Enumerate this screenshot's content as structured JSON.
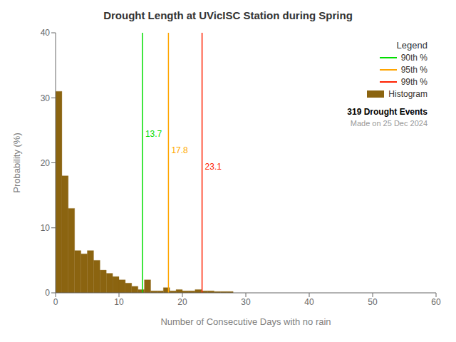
{
  "chart_data": {
    "type": "histogram",
    "title": "Drought Length at UVicISC Station during Spring",
    "xlabel": "Number of Consecutive Days with no rain",
    "ylabel": "Probability (%)",
    "bins": [
      0,
      1,
      2,
      3,
      4,
      5,
      6,
      7,
      8,
      9,
      10,
      11,
      12,
      13,
      14,
      15,
      16,
      17,
      18,
      19,
      20,
      21,
      22,
      23,
      24,
      25,
      26,
      27,
      28,
      29,
      30,
      31,
      32,
      33,
      34,
      35,
      36,
      37,
      38,
      39,
      40,
      41,
      42,
      43,
      44,
      45,
      46,
      47,
      48,
      49,
      50,
      51,
      52,
      53,
      54,
      55,
      56,
      57,
      58,
      59,
      60
    ],
    "series": [
      {
        "name": "Histogram",
        "color": "#8B6410",
        "values": [
          31.0,
          18.0,
          13.0,
          6.5,
          6.0,
          6.5,
          5.0,
          3.5,
          3.0,
          2.5,
          2.0,
          1.5,
          1.0,
          0.5,
          2.0,
          0.3,
          0.3,
          0.8,
          0.3,
          0.5,
          0.3,
          0.3,
          0.5,
          0.3,
          0.3,
          0.2,
          0.2,
          0.2,
          0.0,
          0.0,
          0.0,
          0.0,
          0.0,
          0.0,
          0.0,
          0.0,
          0.0,
          0.0,
          0.0,
          0.0,
          0.0,
          0.0,
          0.0,
          0.0,
          0.0,
          0.0,
          0.0,
          0.0,
          0.0,
          0.0,
          0.0,
          0.0,
          0.0,
          0.0,
          0.0,
          0.0,
          0.0,
          0.0,
          0.0,
          0.0
        ]
      }
    ],
    "vlines": [
      {
        "name": "90th %",
        "x": 13.7,
        "color": "#00DD00"
      },
      {
        "name": "95th %",
        "x": 17.8,
        "color": "#FFA500"
      },
      {
        "name": "99th %",
        "x": 23.1,
        "color": "#FF2000"
      }
    ],
    "legend_title": "Legend",
    "legend": "upper right",
    "annotations": [
      "319 Drought Events",
      "Made on 25 Dec 2024"
    ],
    "xlim": [
      0,
      60
    ],
    "ylim": [
      0,
      40
    ],
    "xticks": [
      0,
      10,
      20,
      30,
      40,
      50,
      60
    ],
    "yticks": [
      0,
      10,
      20,
      30,
      40
    ],
    "grid": false
  }
}
